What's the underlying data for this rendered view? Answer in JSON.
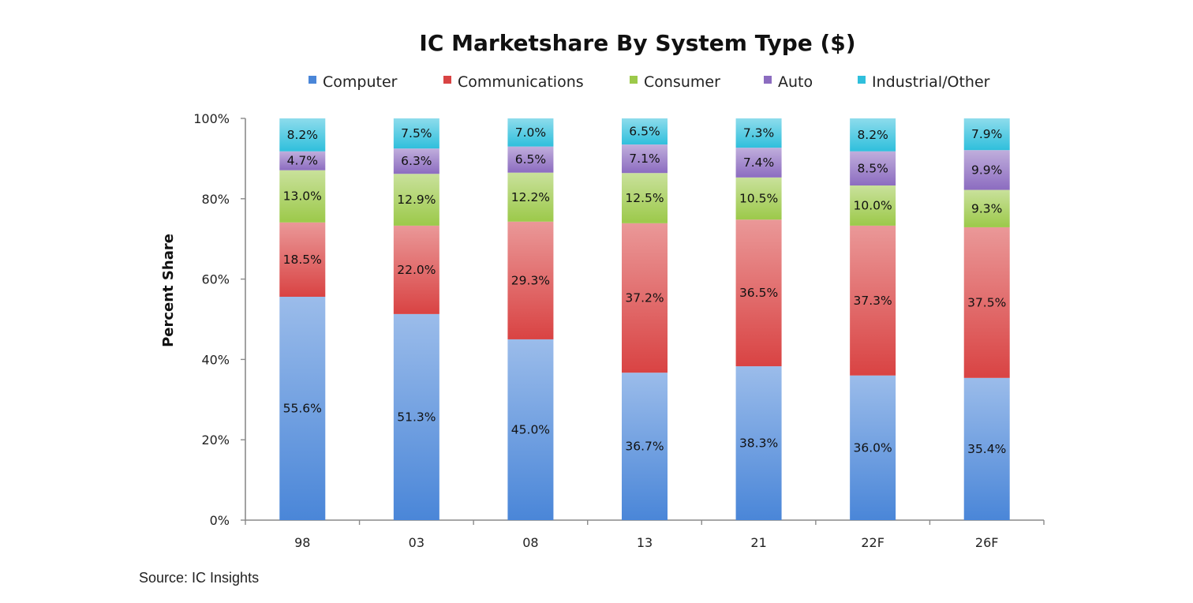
{
  "chart_data": {
    "type": "bar",
    "stacked": true,
    "title": "IC Marketshare By System Type ($)",
    "xlabel": "",
    "ylabel": "Percent Share",
    "ylim": [
      0,
      100
    ],
    "yticks": [
      "0%",
      "20%",
      "40%",
      "60%",
      "80%",
      "100%"
    ],
    "categories": [
      "98",
      "03",
      "08",
      "13",
      "21",
      "22F",
      "26F"
    ],
    "series": [
      {
        "name": "Computer",
        "color": "#4a86d8",
        "values": [
          55.6,
          51.3,
          45.0,
          36.7,
          38.3,
          36.0,
          35.4
        ],
        "labels": [
          "55.6%",
          "51.3%",
          "45.0%",
          "36.7%",
          "38.3%",
          "36.0%",
          "35.4%"
        ]
      },
      {
        "name": "Communications",
        "color": "#d94343",
        "values": [
          18.5,
          22.0,
          29.3,
          37.2,
          36.5,
          37.3,
          37.5
        ],
        "labels": [
          "18.5%",
          "22.0%",
          "29.3%",
          "37.2%",
          "36.5%",
          "37.3%",
          "37.5%"
        ]
      },
      {
        "name": "Consumer",
        "color": "#9cc94a",
        "values": [
          13.0,
          12.9,
          12.2,
          12.5,
          10.5,
          10.0,
          9.3
        ],
        "labels": [
          "13.0%",
          "12.9%",
          "12.2%",
          "12.5%",
          "10.5%",
          "10.0%",
          "9.3%"
        ]
      },
      {
        "name": "Auto",
        "color": "#8c6cc0",
        "values": [
          4.7,
          6.3,
          6.5,
          7.1,
          7.4,
          8.5,
          9.9
        ],
        "labels": [
          "4.7%",
          "6.3%",
          "6.5%",
          "7.1%",
          "7.4%",
          "8.5%",
          "9.9%"
        ]
      },
      {
        "name": "Industrial/Other",
        "color": "#2fbfdc",
        "values": [
          8.2,
          7.5,
          7.0,
          6.5,
          7.3,
          8.2,
          7.9
        ],
        "labels": [
          "8.2%",
          "7.5%",
          "7.0%",
          "6.5%",
          "7.3%",
          "8.2%",
          "7.9%"
        ]
      }
    ],
    "legend_position": "top"
  },
  "source": "Source: IC Insights"
}
